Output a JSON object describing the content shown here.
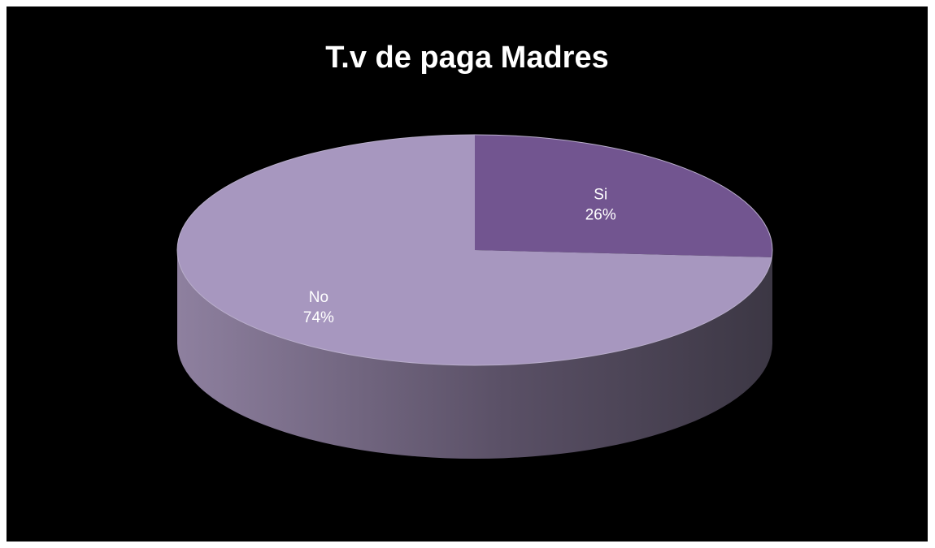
{
  "chart_data": {
    "type": "pie",
    "title": "T.v de paga Madres",
    "slices": [
      {
        "label": "Si",
        "value": 26,
        "value_label": "26%",
        "color": "#725590"
      },
      {
        "label": "No",
        "value": 74,
        "value_label": "74%",
        "color": "#a797bf"
      }
    ],
    "style": "3d",
    "background": "#000000",
    "side_colors": {
      "light": "#8e809f",
      "dark": "#3c3744"
    }
  }
}
